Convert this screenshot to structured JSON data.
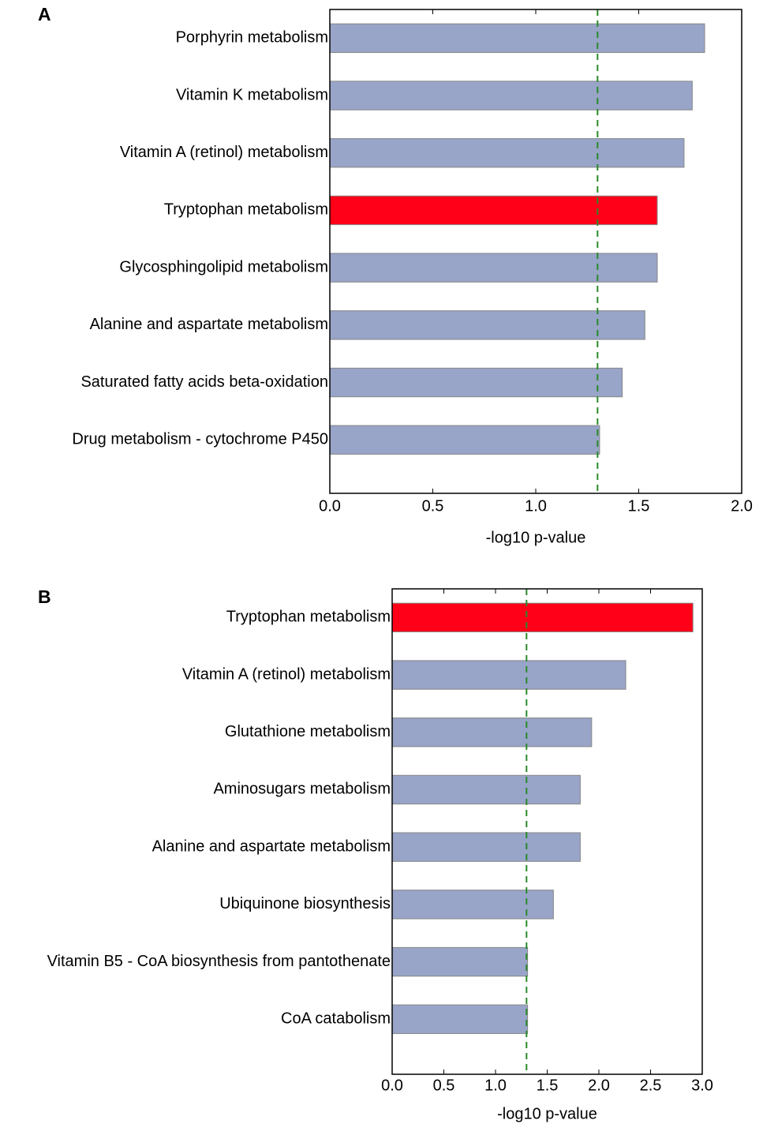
{
  "chart_data": [
    {
      "type": "barh",
      "panel_label": "A",
      "categories": [
        "Porphyrin metabolism",
        "Vitamin K metabolism",
        "Vitamin A (retinol) metabolism",
        "Tryptophan metabolism",
        "Glycosphingolipid metabolism",
        "Alanine and aspartate metabolism",
        "Saturated fatty acids beta-oxidation",
        "Drug metabolism - cytochrome P450"
      ],
      "values": [
        1.82,
        1.76,
        1.72,
        1.59,
        1.59,
        1.53,
        1.42,
        1.31
      ],
      "colors": [
        "#98a4c8",
        "#98a4c8",
        "#98a4c8",
        "#ff0018",
        "#98a4c8",
        "#98a4c8",
        "#98a4c8",
        "#98a4c8"
      ],
      "xlabel": "-log10 p-value",
      "xlim": [
        0,
        2
      ],
      "xticks": [
        {
          "value": 0,
          "label": "0.0"
        },
        {
          "value": 0.5,
          "label": "0.5"
        },
        {
          "value": 1,
          "label": "1.0"
        },
        {
          "value": 1.5,
          "label": "1.5"
        },
        {
          "value": 2,
          "label": "2.0"
        }
      ],
      "threshold": 1.3,
      "threshold_color": "#2a8a2a"
    },
    {
      "type": "barh",
      "panel_label": "B",
      "categories": [
        "Tryptophan metabolism",
        "Vitamin A (retinol) metabolism",
        "Glutathione metabolism",
        "Aminosugars metabolism",
        "Alanine and aspartate metabolism",
        "Ubiquinone biosynthesis",
        "Vitamin B5 - CoA biosynthesis from pantothenate",
        "CoA catabolism"
      ],
      "values": [
        2.91,
        2.26,
        1.93,
        1.82,
        1.82,
        1.56,
        1.31,
        1.31
      ],
      "colors": [
        "#ff0018",
        "#98a4c8",
        "#98a4c8",
        "#98a4c8",
        "#98a4c8",
        "#98a4c8",
        "#98a4c8",
        "#98a4c8"
      ],
      "xlabel": "-log10 p-value",
      "xlim": [
        0,
        3
      ],
      "xticks": [
        {
          "value": 0,
          "label": "0.0"
        },
        {
          "value": 0.5,
          "label": "0.5"
        },
        {
          "value": 1,
          "label": "1.0"
        },
        {
          "value": 1.5,
          "label": "1.5"
        },
        {
          "value": 2,
          "label": "2.0"
        },
        {
          "value": 2.5,
          "label": "2.5"
        },
        {
          "value": 3,
          "label": "3.0"
        }
      ],
      "threshold": 1.3,
      "threshold_color": "#2a8a2a"
    }
  ]
}
